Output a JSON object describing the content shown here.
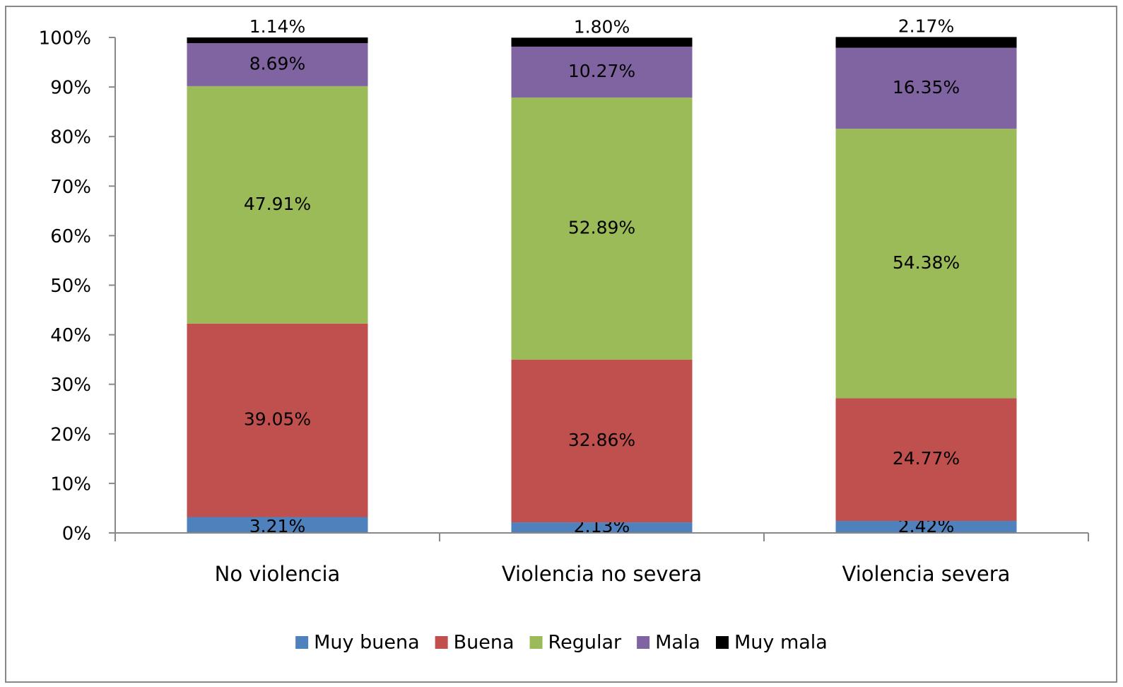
{
  "chart_data": {
    "type": "stacked_bar",
    "categories": [
      "No violencia",
      "Violencia no severa",
      "Violencia severa"
    ],
    "series": [
      {
        "name": "Muy buena",
        "color": "#4f81bd",
        "values": [
          3.21,
          2.13,
          2.42
        ],
        "value_labels": [
          "3.21%",
          "2.13%",
          "2.42%"
        ]
      },
      {
        "name": "Buena",
        "color": "#c0504d",
        "values": [
          39.05,
          32.86,
          24.77
        ],
        "value_labels": [
          "39.05%",
          "32.86%",
          "24.77%"
        ]
      },
      {
        "name": "Regular",
        "color": "#9bbb59",
        "values": [
          47.91,
          52.89,
          54.38
        ],
        "value_labels": [
          "47.91%",
          "52.89%",
          "54.38%"
        ]
      },
      {
        "name": "Mala",
        "color": "#8064a2",
        "values": [
          8.69,
          10.27,
          16.35
        ],
        "value_labels": [
          "8.69%",
          "10.27%",
          "16.35%"
        ]
      },
      {
        "name": "Muy mala",
        "color": "#000000",
        "values": [
          1.14,
          1.8,
          2.17
        ],
        "value_labels": [
          "1.14%",
          "1.80%",
          "2.17%"
        ]
      }
    ],
    "ylim": [
      0,
      100
    ],
    "yticks": [
      {
        "value": 0,
        "label": "0%"
      },
      {
        "value": 10,
        "label": "10%"
      },
      {
        "value": 20,
        "label": "20%"
      },
      {
        "value": 30,
        "label": "30%"
      },
      {
        "value": 40,
        "label": "40%"
      },
      {
        "value": 50,
        "label": "50%"
      },
      {
        "value": 60,
        "label": "60%"
      },
      {
        "value": 70,
        "label": "70%"
      },
      {
        "value": 80,
        "label": "80%"
      },
      {
        "value": 90,
        "label": "90%"
      },
      {
        "value": 100,
        "label": "100%"
      }
    ],
    "legend": "bottom"
  }
}
